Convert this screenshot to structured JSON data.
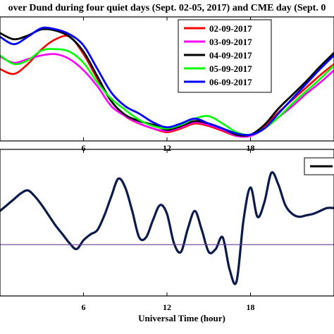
{
  "chart_data": [
    {
      "type": "line",
      "title": "over Dund during four quiet days (Sept. 02-05, 2017) and CME day (Sept. 0",
      "xlim": [
        0,
        24
      ],
      "x_ticks": [
        6,
        12,
        18
      ],
      "grid": false,
      "legend_position": "top-right",
      "series": [
        {
          "name": "02-09-2017",
          "color": "#ff0000",
          "x": [
            0,
            1,
            2,
            3,
            4,
            5,
            6,
            7,
            8,
            9,
            10,
            11,
            12,
            13,
            14,
            15,
            16,
            17,
            18,
            19,
            20,
            21,
            22,
            23,
            24
          ],
          "y": [
            0.58,
            0.54,
            0.62,
            0.74,
            0.82,
            0.84,
            0.7,
            0.5,
            0.32,
            0.2,
            0.14,
            0.1,
            0.07,
            0.1,
            0.14,
            0.12,
            0.08,
            0.04,
            0.05,
            0.12,
            0.23,
            0.33,
            0.43,
            0.53,
            0.62
          ]
        },
        {
          "name": "03-09-2017",
          "color": "#ff00ff",
          "x": [
            0,
            1,
            2,
            3,
            4,
            5,
            6,
            7,
            8,
            9,
            10,
            11,
            12,
            13,
            14,
            15,
            16,
            17,
            18,
            19,
            20,
            21,
            22,
            23,
            24
          ],
          "y": [
            0.68,
            0.63,
            0.66,
            0.69,
            0.7,
            0.66,
            0.57,
            0.44,
            0.28,
            0.2,
            0.14,
            0.1,
            0.08,
            0.11,
            0.15,
            0.13,
            0.09,
            0.04,
            0.04,
            0.1,
            0.19,
            0.28,
            0.38,
            0.47,
            0.57
          ]
        },
        {
          "name": "04-09-2017",
          "color": "#000000",
          "x": [
            0,
            1,
            2,
            3,
            4,
            5,
            6,
            7,
            8,
            9,
            10,
            11,
            12,
            13,
            14,
            15,
            16,
            17,
            18,
            19,
            20,
            21,
            22,
            23,
            24
          ],
          "y": [
            0.87,
            0.82,
            0.85,
            0.9,
            0.89,
            0.84,
            0.72,
            0.52,
            0.32,
            0.21,
            0.16,
            0.13,
            0.09,
            0.12,
            0.16,
            0.14,
            0.1,
            0.05,
            0.05,
            0.13,
            0.26,
            0.37,
            0.48,
            0.6,
            0.71
          ]
        },
        {
          "name": "05-09-2017",
          "color": "#00ff00",
          "x": [
            0,
            1,
            2,
            3,
            4,
            5,
            6,
            7,
            8,
            9,
            10,
            11,
            12,
            13,
            14,
            15,
            16,
            17,
            18,
            19,
            20,
            21,
            22,
            23,
            24
          ],
          "y": [
            0.69,
            0.62,
            0.65,
            0.73,
            0.74,
            0.72,
            0.63,
            0.47,
            0.34,
            0.25,
            0.17,
            0.12,
            0.1,
            0.13,
            0.18,
            0.2,
            0.14,
            0.07,
            0.05,
            0.1,
            0.19,
            0.3,
            0.4,
            0.5,
            0.61
          ]
        },
        {
          "name": "06-09-2017",
          "color": "#0000ff",
          "x": [
            0,
            1,
            2,
            3,
            4,
            5,
            6,
            7,
            8,
            9,
            10,
            11,
            12,
            13,
            14,
            15,
            16,
            17,
            18,
            19,
            20,
            21,
            22,
            23,
            24
          ],
          "y": [
            0.84,
            0.78,
            0.84,
            0.91,
            0.9,
            0.86,
            0.77,
            0.58,
            0.39,
            0.28,
            0.22,
            0.15,
            0.11,
            0.14,
            0.18,
            0.14,
            0.1,
            0.06,
            0.05,
            0.1,
            0.22,
            0.34,
            0.46,
            0.58,
            0.69
          ]
        }
      ]
    },
    {
      "type": "line",
      "xlabel": "Universal Time (hour)",
      "xlim": [
        0,
        24
      ],
      "x_ticks": [
        6,
        12,
        18
      ],
      "grid": false,
      "legend_position": "top-right",
      "series": [
        {
          "color": "#0a1a4a",
          "x": [
            0,
            0.5,
            1,
            1.5,
            2,
            2.5,
            3,
            3.5,
            4,
            4.5,
            5,
            5.5,
            6,
            6.5,
            7,
            7.5,
            8,
            8.5,
            9,
            9.5,
            10,
            10.5,
            11,
            11.5,
            12,
            12.5,
            13,
            13.5,
            14,
            14.5,
            15,
            15.5,
            16,
            16.5,
            17,
            17.5,
            18,
            18.5,
            19,
            19.5,
            20,
            20.5,
            21,
            21.5,
            22,
            22.5,
            23,
            23.5,
            24
          ],
          "y": [
            0.58,
            0.62,
            0.66,
            0.7,
            0.72,
            0.68,
            0.62,
            0.55,
            0.48,
            0.42,
            0.36,
            0.32,
            0.38,
            0.42,
            0.45,
            0.55,
            0.68,
            0.8,
            0.74,
            0.58,
            0.4,
            0.4,
            0.52,
            0.62,
            0.56,
            0.36,
            0.3,
            0.46,
            0.58,
            0.45,
            0.3,
            0.32,
            0.4,
            0.18,
            0.1,
            0.52,
            0.74,
            0.54,
            0.64,
            0.84,
            0.76,
            0.62,
            0.56,
            0.54,
            0.55,
            0.56,
            0.58,
            0.6,
            0.6
          ]
        },
        {
          "color": "#6a3d9a",
          "x": [
            0,
            24
          ],
          "y": [
            0.35,
            0.35
          ]
        }
      ]
    }
  ]
}
